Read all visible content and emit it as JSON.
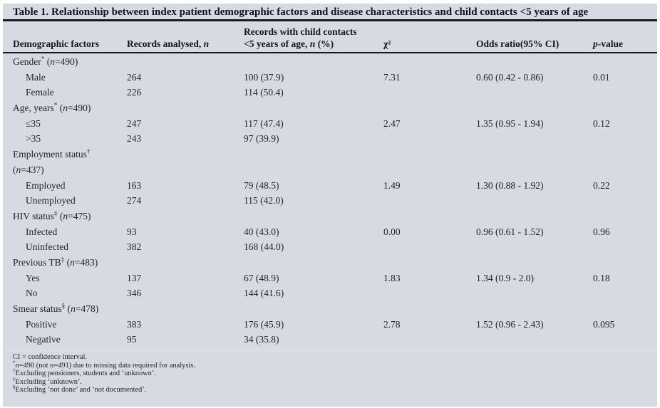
{
  "title": "Table 1. Relationship between index patient demographic factors and disease characteristics and child contacts <5 years of age",
  "colors": {
    "panel_background": "#d7dae1",
    "text": "#23252f",
    "title_text": "#101322",
    "rule": "#181a23"
  },
  "table": {
    "header": {
      "demographic": "Demographic factors",
      "records": "Records analysed, n",
      "contacts_line1": "Records with child contacts",
      "contacts_line2": "<5 years of age, n (%)",
      "chi_square": "χ²",
      "odds_ratio": "Odds ratio(95% CI)",
      "p_value": "p-value"
    },
    "rows": [
      {
        "label": "Gender* (n=490)",
        "indent": false,
        "n": "",
        "contacts": "",
        "chi2": "",
        "or": "",
        "p": ""
      },
      {
        "label": "Male",
        "indent": true,
        "n": "264",
        "contacts": "100 (37.9)",
        "chi2": "7.31",
        "or": "0.60 (0.42 - 0.86)",
        "p": "0.01"
      },
      {
        "label": "Female",
        "indent": true,
        "n": "226",
        "contacts": "114 (50.4)",
        "chi2": "",
        "or": "",
        "p": ""
      },
      {
        "label": "Age, years* (n=490)",
        "indent": false,
        "n": "",
        "contacts": "",
        "chi2": "",
        "or": "",
        "p": ""
      },
      {
        "label": "≤35",
        "indent": true,
        "n": "247",
        "contacts": "117 (47.4)",
        "chi2": "2.47",
        "or": "1.35 (0.95 - 1.94)",
        "p": "0.12"
      },
      {
        "label": ">35",
        "indent": true,
        "n": "243",
        "contacts": "97 (39.9)",
        "chi2": "",
        "or": "",
        "p": ""
      },
      {
        "label": "Employment status†",
        "indent": false,
        "n": "",
        "contacts": "",
        "chi2": "",
        "or": "",
        "p": ""
      },
      {
        "label": "(n=437)",
        "indent": false,
        "n": "",
        "contacts": "",
        "chi2": "",
        "or": "",
        "p": ""
      },
      {
        "label": "Employed",
        "indent": true,
        "n": "163",
        "contacts": "79 (48.5)",
        "chi2": "1.49",
        "or": "1.30 (0.88 - 1.92)",
        "p": "0.22"
      },
      {
        "label": "Unemployed",
        "indent": true,
        "n": "274",
        "contacts": "115 (42.0)",
        "chi2": "",
        "or": "",
        "p": ""
      },
      {
        "label": "HIV status‡ (n=475)",
        "indent": false,
        "n": "",
        "contacts": "",
        "chi2": "",
        "or": "",
        "p": ""
      },
      {
        "label": "Infected",
        "indent": true,
        "n": "93",
        "contacts": "40 (43.0)",
        "chi2": "0.00",
        "or": "0.96 (0.61 - 1.52)",
        "p": "0.96"
      },
      {
        "label": "Uninfected",
        "indent": true,
        "n": "382",
        "contacts": "168 (44.0)",
        "chi2": "",
        "or": "",
        "p": ""
      },
      {
        "label": "Previous TB‡ (n=483)",
        "indent": false,
        "n": "",
        "contacts": "",
        "chi2": "",
        "or": "",
        "p": ""
      },
      {
        "label": "Yes",
        "indent": true,
        "n": "137",
        "contacts": "67 (48.9)",
        "chi2": "1.83",
        "or": "1.34 (0.9 - 2.0)",
        "p": "0.18"
      },
      {
        "label": "No",
        "indent": true,
        "n": "346",
        "contacts": "144 (41.6)",
        "chi2": "",
        "or": "",
        "p": ""
      },
      {
        "label": "Smear status§ (n=478)",
        "indent": false,
        "n": "",
        "contacts": "",
        "chi2": "",
        "or": "",
        "p": ""
      },
      {
        "label": "Positive",
        "indent": true,
        "n": "383",
        "contacts": "176 (45.9)",
        "chi2": "2.78",
        "or": "1.52 (0.96 - 2.43)",
        "p": "0.095"
      },
      {
        "label": "Negative",
        "indent": true,
        "n": "95",
        "contacts": "34 (35.8)",
        "chi2": "",
        "or": "",
        "p": ""
      }
    ]
  },
  "footnotes": [
    "CI = confidence interval.",
    "*n=490 (not n=491) due to missing data required for analysis.",
    "†Excluding pensioners, students and ‘unknown’.",
    "‡Excluding ‘unknown’.",
    "§Excluding ‘not done’ and ‘not documented’."
  ]
}
